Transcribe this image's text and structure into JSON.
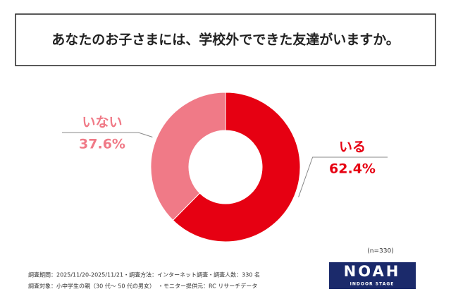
{
  "chart_data": {
    "type": "pie",
    "donut": true,
    "title": "あなたのお子さまには、学校外でできた友達がいますか。",
    "categories": [
      "いる",
      "いない"
    ],
    "values": [
      62.4,
      37.6
    ],
    "value_labels": [
      "62.4%",
      "37.6%"
    ],
    "colors": [
      "#e60012",
      "#f07a87"
    ],
    "note": "(n=330)"
  },
  "footer": {
    "lines": [
      "調査期間：2025/11/20-2025/11/21・調査方法：インターネット調査・調査人数：330 名",
      "調査対象：小中学生の親（30 代～ 50 代の男女）　・モニター提供元：RC リサーチデータ"
    ],
    "logo": "NOAH",
    "logo_tagline": "INDOOR STAGE"
  }
}
